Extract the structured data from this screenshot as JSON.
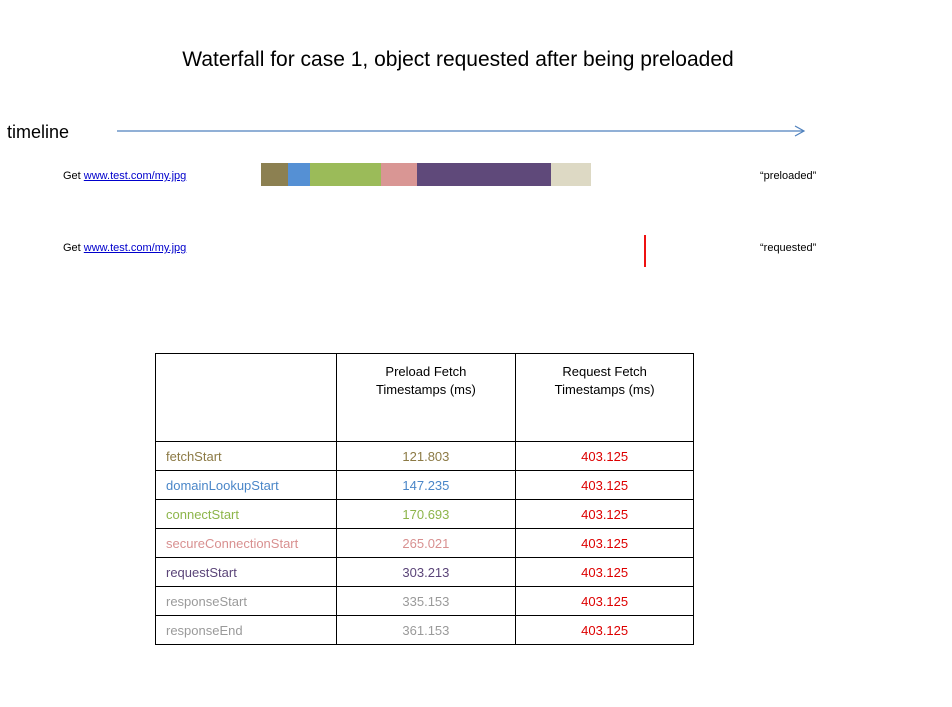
{
  "title": "Waterfall for case 1, object requested after being preloaded",
  "timeline_label": "timeline",
  "rows": [
    {
      "prefix": "Get",
      "url": "www.test.com/my.jpg",
      "status": "“preloaded”"
    },
    {
      "prefix": "Get",
      "url": "www.test.com/my.jpg",
      "status": "“requested”"
    }
  ],
  "colors": {
    "fetchStart": "#8c8051",
    "domainLookupStart": "#5590d4",
    "connectStart": "#9bbb59",
    "secureConnectionStart": "#d99694",
    "requestStart": "#5f497a",
    "responseStart": "#ddd9c4",
    "marker": "#ee1111",
    "arrow": "#4f81bd"
  },
  "table": {
    "headers": [
      "",
      "Preload  Fetch Timestamps (ms)",
      "Request Fetch Timestamps (ms)"
    ],
    "rows": [
      {
        "name": "fetchStart",
        "preload": "121.803",
        "request": "403.125"
      },
      {
        "name": "domainLookupStart",
        "preload": "147.235",
        "request": "403.125"
      },
      {
        "name": "connectStart",
        "preload": "170.693",
        "request": "403.125"
      },
      {
        "name": "secureConnectionStart",
        "preload": "265.021",
        "request": "403.125"
      },
      {
        "name": "requestStart",
        "preload": "303.213",
        "request": "403.125"
      },
      {
        "name": "responseStart",
        "preload": "335.153",
        "request": "403.125"
      },
      {
        "name": "responseEnd",
        "preload": "361.153",
        "request": "403.125"
      }
    ]
  }
}
